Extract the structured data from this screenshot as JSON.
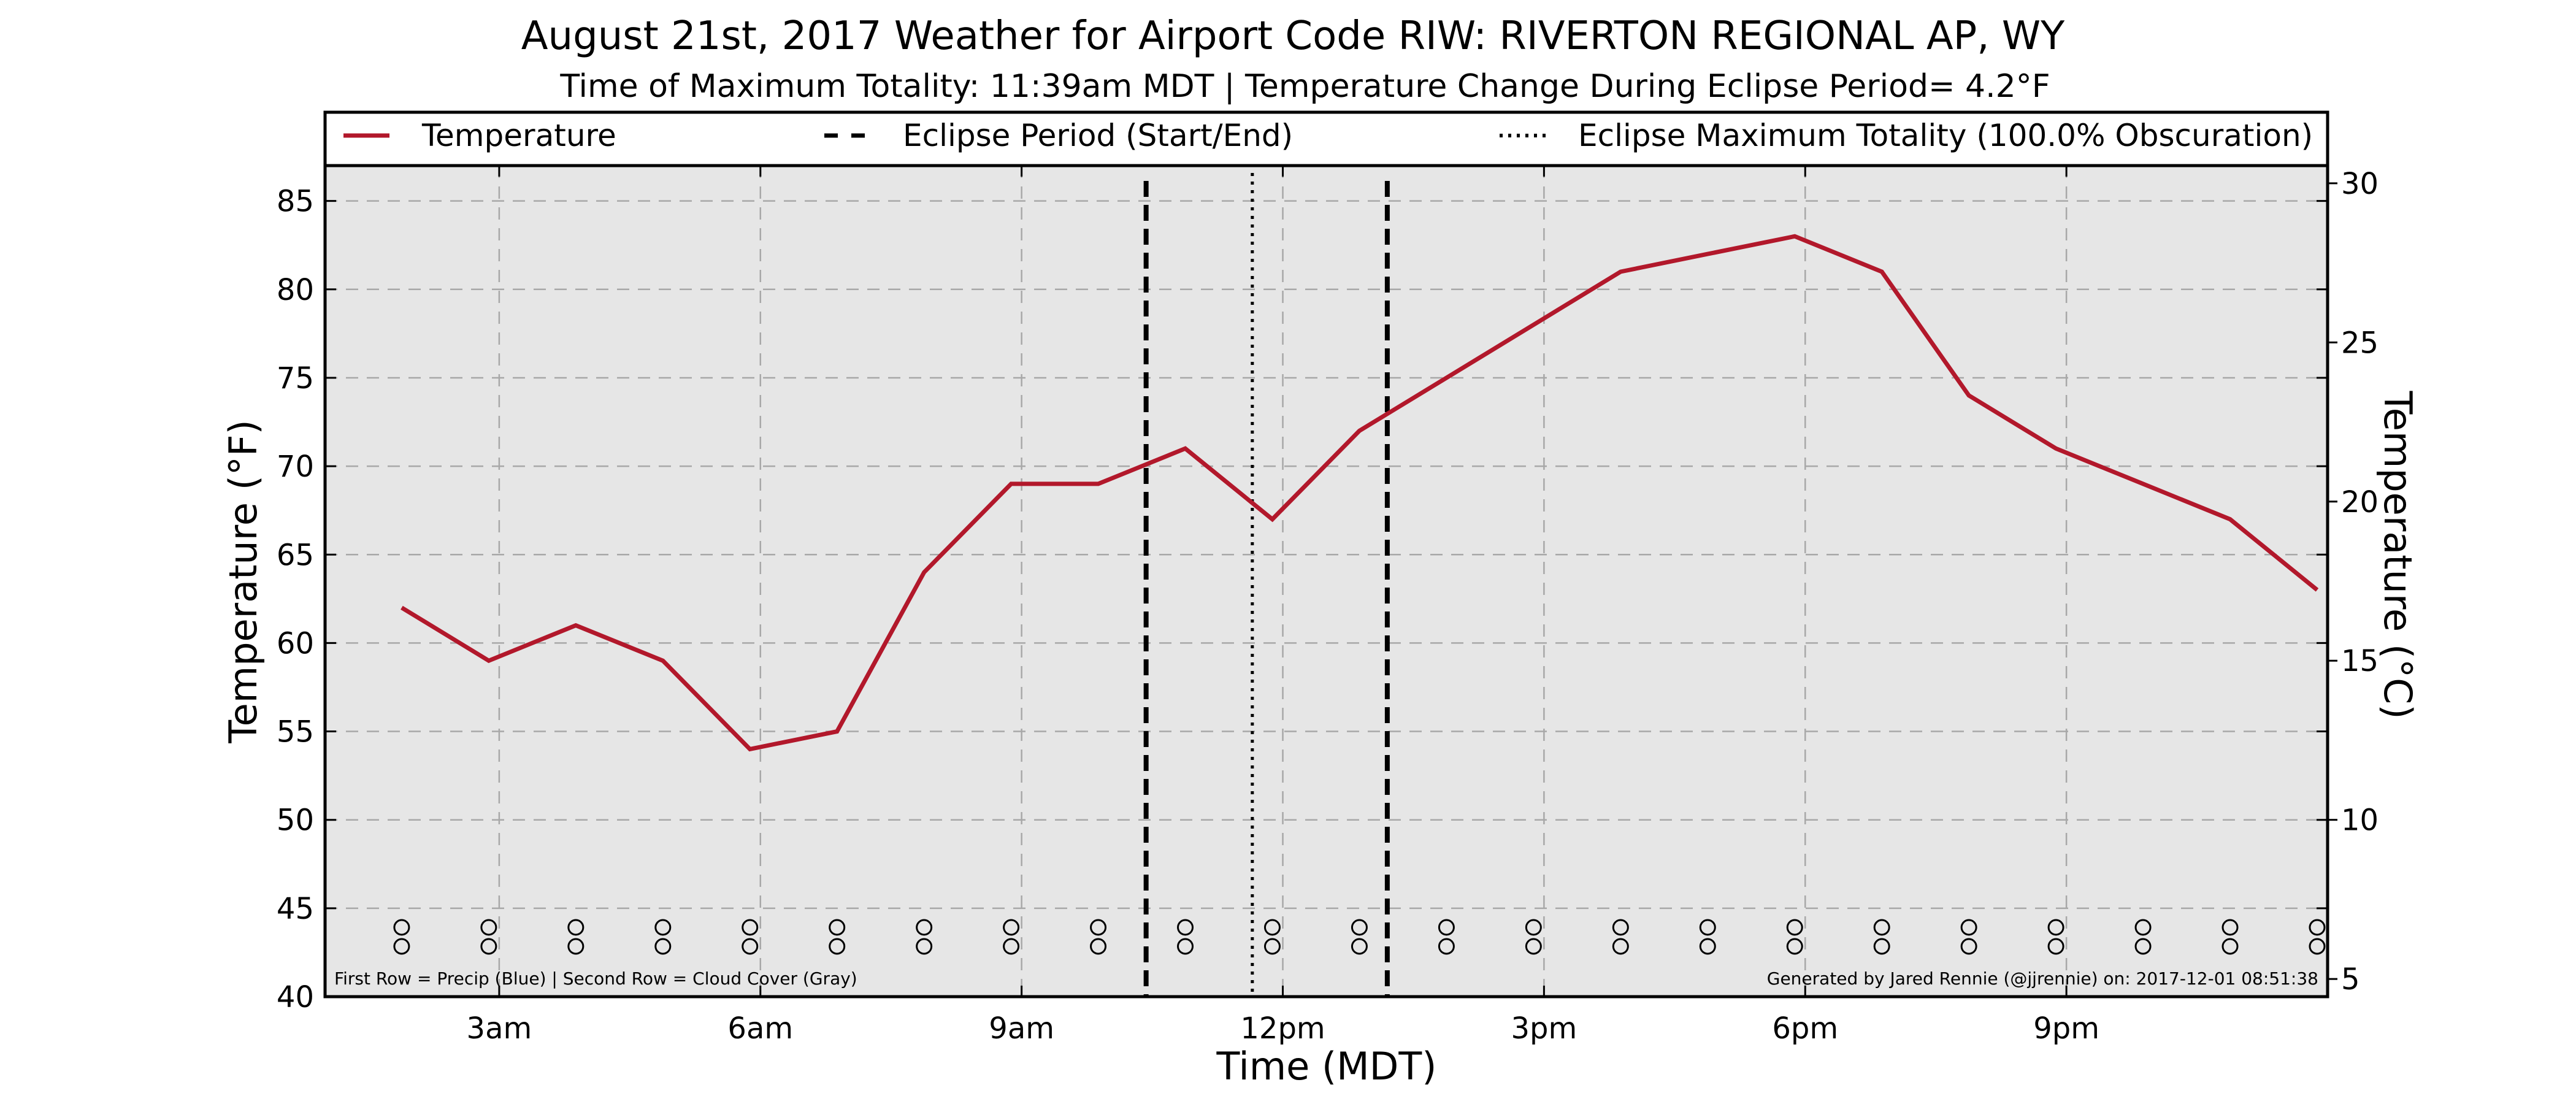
{
  "chart_data": {
    "type": "line",
    "title": "August 21st, 2017 Weather for Airport Code RIW: RIVERTON REGIONAL AP, WY",
    "subtitle": "Time of Maximum Totality: 11:39am MDT | Temperature Change During Eclipse Period= 4.2°F",
    "xlabel": "Time (MDT)",
    "ylabel": "Temperature (°F)",
    "ylabel_right": "Temperature (°C)",
    "xlim": [
      1.0,
      24.0
    ],
    "ylim": [
      40,
      87
    ],
    "x_ticks": [
      {
        "x": 3,
        "label": "3am"
      },
      {
        "x": 6,
        "label": "6am"
      },
      {
        "x": 9,
        "label": "9am"
      },
      {
        "x": 12,
        "label": "12pm"
      },
      {
        "x": 15,
        "label": "3pm"
      },
      {
        "x": 18,
        "label": "6pm"
      },
      {
        "x": 21,
        "label": "9pm"
      }
    ],
    "y_ticks": [
      40,
      45,
      50,
      55,
      60,
      65,
      70,
      75,
      80,
      85
    ],
    "y_ticks_right": [
      5,
      10,
      15,
      20,
      25,
      30
    ],
    "grid": true,
    "legend_position": "top",
    "series": [
      {
        "name": "Temperature",
        "color": "#b2182b",
        "x": [
          1.88,
          2.88,
          3.88,
          4.88,
          5.88,
          6.88,
          7.88,
          8.88,
          9.88,
          10.88,
          11.88,
          12.88,
          13.88,
          14.88,
          15.88,
          16.88,
          17.88,
          18.88,
          19.88,
          20.88,
          21.88,
          22.88,
          23.88
        ],
        "values": [
          62,
          59,
          61,
          59,
          54,
          55,
          64,
          69,
          69,
          71,
          67,
          72,
          75,
          78,
          81,
          82,
          83,
          81,
          74,
          71,
          69,
          67,
          63
        ]
      }
    ],
    "eclipse_start": 10.43,
    "eclipse_max": 11.65,
    "eclipse_end": 13.2,
    "legend": [
      {
        "label": "Temperature",
        "style": "solid",
        "color": "#b2182b"
      },
      {
        "label": "Eclipse Period (Start/End)",
        "style": "dashed",
        "color": "#000000"
      },
      {
        "label": "Eclipse Maximum Totality (100.0% Obscuration)",
        "style": "dotted",
        "color": "#000000"
      }
    ],
    "footnote_left": "First Row = Precip (Blue) | Second Row = Cloud Cover (Gray)",
    "footnote_right": "Generated by Jared Rennie (@jjrennie) on: 2017-12-01 08:51:38"
  }
}
